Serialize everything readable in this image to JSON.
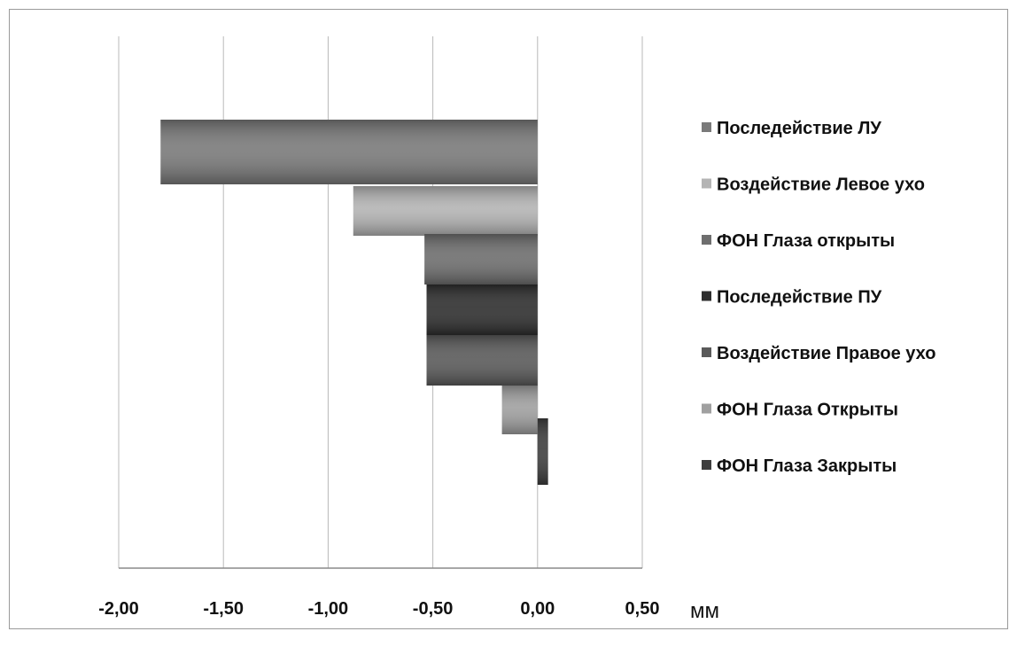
{
  "chart_data": {
    "type": "bar",
    "orientation": "horizontal",
    "xlabel": "мм",
    "xlim": [
      -2.0,
      0.5
    ],
    "x_ticks": [
      -2.0,
      -1.5,
      -1.0,
      -0.5,
      0.0,
      0.5
    ],
    "x_tick_labels": [
      "-2,00",
      "-1,50",
      "-1,00",
      "-0,50",
      "0,00",
      "0,50"
    ],
    "grid": true,
    "legend_position": "right",
    "series": [
      {
        "name": "Последействие ЛУ",
        "value": -1.8,
        "color": "#7a7a7a"
      },
      {
        "name": "Воздействие Левое ухо",
        "value": -0.88,
        "color": "#b4b4b4"
      },
      {
        "name": "ФОН Глаза открыты",
        "value": -0.54,
        "color": "#6e6e6e"
      },
      {
        "name": "Последействие ПУ",
        "value": -0.53,
        "color": "#2e2e2e"
      },
      {
        "name": "Воздействие Правое ухо",
        "value": -0.53,
        "color": "#5a5a5a"
      },
      {
        "name": "ФОН Глаза Открыты",
        "value": -0.17,
        "color": "#a0a0a0"
      },
      {
        "name": "ФОН Глаза Закрыты",
        "value": 0.05,
        "color": "#3e3e3e"
      }
    ]
  }
}
